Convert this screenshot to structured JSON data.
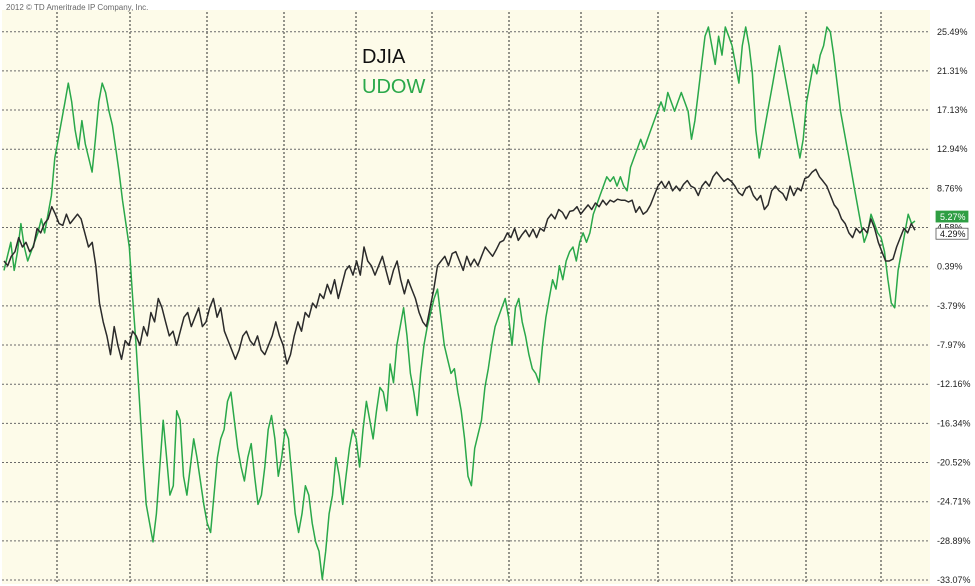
{
  "copyright": "2012 © TD Ameritrade IP Company, Inc.",
  "colors": {
    "djia": "#2b2b2b",
    "udow": "#2aa84a",
    "background": "#fdfbe9"
  },
  "chart_data": {
    "type": "line",
    "y_tick_labels": [
      "25.49%",
      "21.31%",
      "17.13%",
      "12.94%",
      "8.76%",
      "4.58%",
      "0.39%",
      "-3.79%",
      "-7.97%",
      "-12.16%",
      "-16.34%",
      "-20.52%",
      "-24.71%",
      "-28.89%",
      "-33.07%"
    ],
    "y_ticks": [
      25.49,
      21.31,
      17.13,
      12.94,
      8.76,
      4.58,
      0.39,
      -3.79,
      -7.97,
      -12.16,
      -16.34,
      -20.52,
      -24.71,
      -28.89,
      -33.07
    ],
    "ylim": [
      -33.5,
      27.6
    ],
    "grid": true,
    "legend_position": "top-center",
    "current_value_labels": [
      {
        "series": "UDOW",
        "label": "5.27%",
        "value": 5.27
      },
      {
        "series": "DJIA",
        "label": "4.29%",
        "value": 4.29
      }
    ],
    "series": [
      {
        "name": "DJIA",
        "values": [
          1,
          0.5,
          1.5,
          2,
          3.5,
          2.5,
          3,
          2,
          2.5,
          4.5,
          4,
          5,
          5.5,
          6.8,
          6,
          5,
          4.8,
          6,
          5,
          5.5,
          6,
          5.5,
          4,
          2.5,
          3,
          0.5,
          -3.5,
          -5.5,
          -7,
          -9,
          -6,
          -8,
          -9.5,
          -7.5,
          -8,
          -6.5,
          -7,
          -8,
          -6,
          -7,
          -4.5,
          -5.5,
          -3,
          -4,
          -5.5,
          -7,
          -6.5,
          -8,
          -6.5,
          -5,
          -4.5,
          -6,
          -5,
          -4,
          -6,
          -5.5,
          -4,
          -3,
          -5,
          -4,
          -6.5,
          -7.5,
          -8.5,
          -9.5,
          -8.5,
          -7,
          -6.5,
          -7.5,
          -8,
          -7,
          -8.5,
          -9,
          -8,
          -7,
          -5.5,
          -7,
          -8,
          -10,
          -9,
          -7,
          -5.5,
          -6.5,
          -4.5,
          -5,
          -3.5,
          -4,
          -2.5,
          -3,
          -1.5,
          -2.5,
          -1,
          -3,
          -1.5,
          0,
          0.5,
          -0.5,
          1,
          -0.5,
          2.5,
          1,
          0.5,
          -0.5,
          0.5,
          1.5,
          0,
          -1.5,
          0,
          1,
          -1,
          -2.5,
          -1,
          -2,
          -3,
          -4.5,
          -5.5,
          -6,
          -4,
          -2,
          0.5,
          1,
          1.5,
          0.5,
          1.8,
          2,
          1,
          0,
          1.5,
          0.5,
          1.2,
          0.5,
          1.5,
          2.5,
          2,
          1.5,
          2.2,
          3,
          3.2,
          4,
          3.5,
          4.5,
          3.2,
          3.8,
          4.3,
          3.6,
          4.4,
          3.5,
          4.5,
          4.2,
          5.5,
          6,
          5.5,
          6.5,
          6.2,
          5.5,
          6.3,
          6.4,
          6.8,
          6,
          6.5,
          7,
          6.5,
          7.2,
          6.8,
          7.5,
          7,
          7.5,
          7.3,
          7.6,
          7.5,
          7.5,
          7.3,
          7.5,
          6.2,
          6.8,
          6,
          6.3,
          7,
          8,
          9,
          9.5,
          8.8,
          9.5,
          8.5,
          9,
          8.5,
          9.2,
          9.6,
          9,
          8.8,
          8,
          9,
          9.5,
          9,
          10,
          10.5,
          10,
          9.5,
          9.8,
          9.5,
          9,
          8.3,
          8,
          8.8,
          9,
          8,
          7.5,
          8,
          6.5,
          7,
          8.5,
          9,
          8.5,
          8.2,
          7.5,
          9,
          8,
          8.8,
          8.5,
          9.8,
          10,
          10.5,
          10.8,
          10,
          9.5,
          9,
          8,
          7,
          6.5,
          5.5,
          5,
          4,
          3.5,
          4.5,
          4,
          4.5,
          4,
          5.5,
          4.5,
          3,
          2,
          1,
          1,
          1.2,
          2.5,
          3.5,
          4.5,
          4,
          5,
          4.29
        ]
      },
      {
        "name": "UDOW",
        "values": [
          0,
          1.5,
          3,
          0,
          2,
          5,
          2.5,
          1,
          2,
          3,
          4,
          5.5,
          4,
          6,
          8,
          12,
          14,
          16,
          18,
          20,
          18,
          15,
          13,
          16,
          13.5,
          12,
          10.5,
          14,
          18,
          20,
          19,
          17,
          15.5,
          13,
          10.5,
          7.5,
          5,
          2.5,
          -3,
          -8,
          -14,
          -20,
          -25,
          -27,
          -29,
          -26,
          -21,
          -16,
          -20,
          -24,
          -23,
          -15,
          -16,
          -22,
          -24,
          -21,
          -18,
          -20,
          -22.5,
          -25,
          -27,
          -28,
          -24,
          -20,
          -18,
          -17,
          -14,
          -13,
          -16,
          -19,
          -21,
          -22.5,
          -20,
          -18.5,
          -22,
          -25,
          -24,
          -21,
          -17,
          -15.5,
          -18,
          -22,
          -20,
          -17,
          -18,
          -22,
          -26,
          -28,
          -26,
          -23,
          -24,
          -27,
          -29,
          -30,
          -33,
          -30,
          -26,
          -24,
          -20,
          -22,
          -25,
          -22,
          -19,
          -17,
          -18,
          -21,
          -17,
          -14,
          -16,
          -18,
          -15,
          -12.5,
          -13,
          -15,
          -10,
          -12,
          -8,
          -6,
          -4,
          -7,
          -11,
          -13,
          -15.5,
          -11,
          -8,
          -6,
          -4.5,
          -3,
          -2,
          -5,
          -8,
          -9.5,
          -11,
          -10.5,
          -13,
          -15,
          -18,
          -22,
          -23,
          -19,
          -17.5,
          -16,
          -12.5,
          -10.5,
          -8,
          -6,
          -5,
          -4,
          -3,
          -5,
          -8,
          -4,
          -3,
          -5.5,
          -7,
          -9,
          -10.5,
          -11,
          -12,
          -8,
          -5,
          -3,
          -1,
          -2,
          0.5,
          -1,
          1,
          2,
          2.5,
          1,
          3,
          4,
          3,
          4,
          6,
          7,
          8,
          9,
          10,
          9.5,
          10,
          9,
          10,
          9,
          8.5,
          11,
          12,
          13,
          14,
          13,
          14,
          15,
          16,
          17,
          18,
          17,
          19,
          18,
          17,
          18,
          19,
          18,
          17,
          14,
          16,
          19,
          22,
          25,
          26,
          24,
          22,
          25,
          23,
          26,
          25,
          24,
          22,
          20,
          24,
          26,
          24,
          21,
          15,
          12,
          14,
          16,
          18,
          20,
          22,
          24,
          22,
          20,
          18,
          16,
          14,
          12,
          14,
          18,
          20,
          22,
          21,
          23,
          24,
          26,
          25.5,
          23,
          20,
          17,
          15,
          13,
          11,
          9,
          7,
          5,
          3,
          4,
          6,
          5,
          4,
          3.5,
          2,
          -1,
          -3.5,
          -4,
          0,
          2,
          4,
          6,
          5,
          5.27
        ]
      }
    ]
  }
}
